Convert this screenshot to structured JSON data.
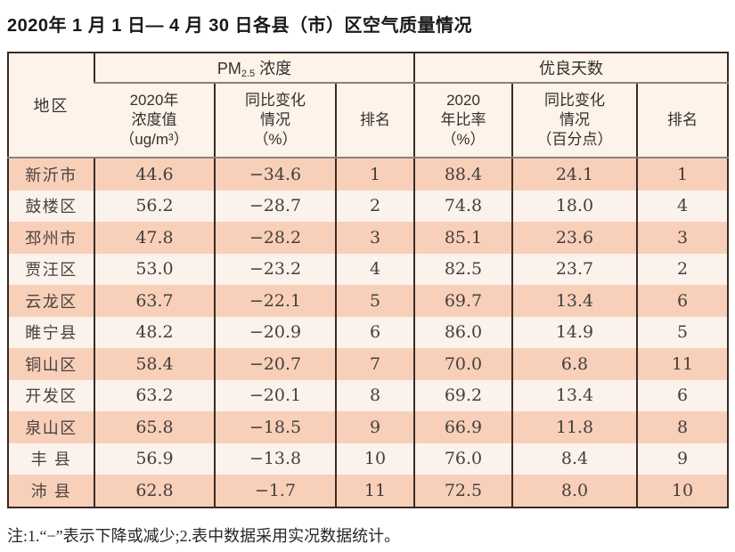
{
  "title": "2020年 1 月 1 日— 4 月 30 日各县（市）区空气质量情况",
  "note": "注:1.“−”表示下降或减少;2.表中数据采用实况数据统计。",
  "colors": {
    "row_odd": "#f8d0ba",
    "row_even": "#fcf2ec",
    "header_bg": "#fdf3ea",
    "border_dark": "#3a2b24",
    "border_gray": "#8c8178"
  },
  "table": {
    "corner_header": "地区",
    "group_pm25": {
      "prefix": "PM",
      "subscript": "2.5",
      "suffix": " 浓度"
    },
    "group_good_days": "优良天数",
    "sub_headers": {
      "pm_value": "2020年\n浓度值\n（ug/m³）",
      "pm_change": "同比变化\n情况\n（%）",
      "pm_rank": "排名",
      "good_ratio": "2020\n年比率\n（%）",
      "good_change": "同比变化\n情况\n（百分点）",
      "good_rank": "排名"
    },
    "rows": [
      {
        "region": "新沂市",
        "pm_value": "44.6",
        "pm_change": "−34.6",
        "pm_rank": "1",
        "good_ratio": "88.4",
        "good_change": "24.1",
        "good_rank": "1"
      },
      {
        "region": "鼓楼区",
        "pm_value": "56.2",
        "pm_change": "−28.7",
        "pm_rank": "2",
        "good_ratio": "74.8",
        "good_change": "18.0",
        "good_rank": "4"
      },
      {
        "region": "邳州市",
        "pm_value": "47.8",
        "pm_change": "−28.2",
        "pm_rank": "3",
        "good_ratio": "85.1",
        "good_change": "23.6",
        "good_rank": "3"
      },
      {
        "region": "贾汪区",
        "pm_value": "53.0",
        "pm_change": "−23.2",
        "pm_rank": "4",
        "good_ratio": "82.5",
        "good_change": "23.7",
        "good_rank": "2"
      },
      {
        "region": "云龙区",
        "pm_value": "63.7",
        "pm_change": "−22.1",
        "pm_rank": "5",
        "good_ratio": "69.7",
        "good_change": "13.4",
        "good_rank": "6"
      },
      {
        "region": "睢宁县",
        "pm_value": "48.2",
        "pm_change": "−20.9",
        "pm_rank": "6",
        "good_ratio": "86.0",
        "good_change": "14.9",
        "good_rank": "5"
      },
      {
        "region": "铜山区",
        "pm_value": "58.4",
        "pm_change": "−20.7",
        "pm_rank": "7",
        "good_ratio": "70.0",
        "good_change": "6.8",
        "good_rank": "11"
      },
      {
        "region": "开发区",
        "pm_value": "63.2",
        "pm_change": "−20.1",
        "pm_rank": "8",
        "good_ratio": "69.2",
        "good_change": "13.4",
        "good_rank": "6"
      },
      {
        "region": "泉山区",
        "pm_value": "65.8",
        "pm_change": "−18.5",
        "pm_rank": "9",
        "good_ratio": "66.9",
        "good_change": "11.8",
        "good_rank": "8"
      },
      {
        "region": "丰 县",
        "pm_value": "56.9",
        "pm_change": "−13.8",
        "pm_rank": "10",
        "good_ratio": "76.0",
        "good_change": "8.4",
        "good_rank": "9"
      },
      {
        "region": "沛 县",
        "pm_value": "62.8",
        "pm_change": "−1.7",
        "pm_rank": "11",
        "good_ratio": "72.5",
        "good_change": "8.0",
        "good_rank": "10"
      }
    ]
  }
}
